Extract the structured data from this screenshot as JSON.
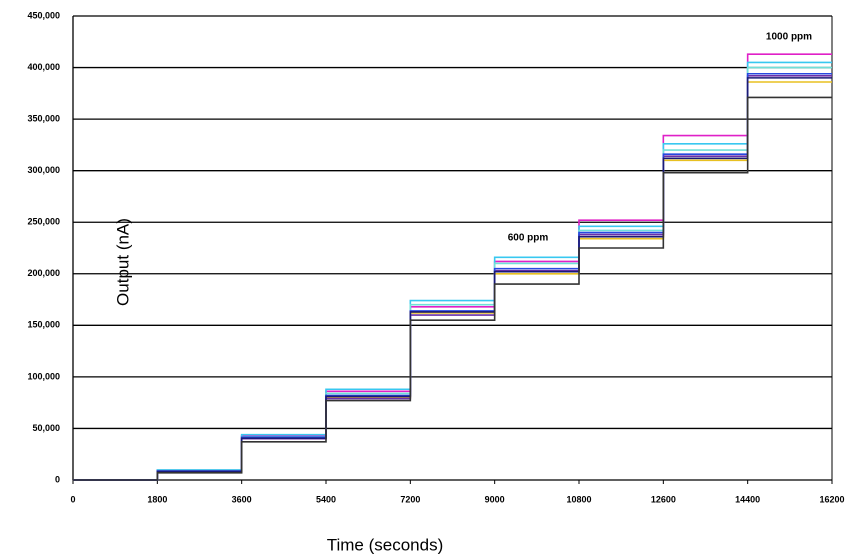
{
  "chart_data": {
    "type": "line",
    "x_label": "Time (seconds)",
    "y_label": "Output (nA)",
    "annotations": [
      "600 ppm",
      "1000 ppm"
    ],
    "x": [
      0,
      1800,
      1800,
      3600,
      3600,
      5400,
      5400,
      7200,
      7200,
      9000,
      9000,
      10800,
      10800,
      12600,
      12600,
      14400,
      14400,
      16200
    ],
    "series": [
      {
        "color": "#e020c8",
        "values": [
          0,
          0,
          9500,
          9500,
          43000,
          43000,
          86000,
          86000,
          168000,
          168000,
          212000,
          212000,
          252000,
          252000,
          334000,
          334000,
          413000,
          413000
        ]
      },
      {
        "color": "#38c8f0",
        "values": [
          0,
          0,
          9800,
          9800,
          44000,
          44000,
          88000,
          88000,
          174000,
          174000,
          216000,
          216000,
          246000,
          246000,
          326000,
          326000,
          405000,
          405000
        ]
      },
      {
        "color": "#70e0d8",
        "values": [
          0,
          0,
          9000,
          9000,
          42000,
          42000,
          84000,
          84000,
          170000,
          170000,
          210000,
          210000,
          242000,
          242000,
          320000,
          320000,
          400000,
          400000
        ]
      },
      {
        "color": "#e8c020",
        "values": [
          0,
          0,
          8500,
          8500,
          41000,
          41000,
          80000,
          80000,
          162000,
          162000,
          200000,
          200000,
          234000,
          234000,
          310000,
          310000,
          386000,
          386000
        ]
      },
      {
        "color": "#6a30a8",
        "values": [
          0,
          0,
          8000,
          8000,
          40000,
          40000,
          79000,
          79000,
          160000,
          160000,
          203000,
          203000,
          238000,
          238000,
          314000,
          314000,
          392000,
          392000
        ]
      },
      {
        "color": "#2848e0",
        "values": [
          0,
          0,
          8800,
          8800,
          41500,
          41500,
          82000,
          82000,
          164000,
          164000,
          205000,
          205000,
          240000,
          240000,
          316000,
          316000,
          394000,
          394000
        ]
      },
      {
        "color": "#1a1a78",
        "values": [
          0,
          0,
          8200,
          8200,
          40500,
          40500,
          81000,
          81000,
          163000,
          163000,
          202000,
          202000,
          236000,
          236000,
          312000,
          312000,
          390000,
          390000
        ]
      },
      {
        "color": "#333333",
        "values": [
          0,
          0,
          7000,
          7000,
          37000,
          37000,
          77000,
          77000,
          155000,
          155000,
          190000,
          190000,
          225000,
          225000,
          298000,
          298000,
          371000,
          371000
        ]
      }
    ],
    "xlim": [
      0,
      16200
    ],
    "xticks": [
      0,
      1800,
      3600,
      5400,
      7200,
      9000,
      10800,
      12600,
      14400,
      16200
    ],
    "ylim": [
      0,
      450000
    ],
    "yticks": [
      0,
      {
        "value": 50000,
        "label": "50,000"
      },
      {
        "value": 100000,
        "label": "100,000"
      },
      {
        "value": 150000,
        "label": "150,000"
      },
      {
        "value": 200000,
        "label": "200,000"
      },
      {
        "value": 250000,
        "label": "250,000"
      },
      {
        "value": 300000,
        "label": "300,000"
      },
      {
        "value": 350000,
        "label": "350,000"
      },
      {
        "value": 400000,
        "label": "400,000"
      },
      {
        "value": 450000,
        "label": "450,000"
      }
    ],
    "grid": true
  }
}
